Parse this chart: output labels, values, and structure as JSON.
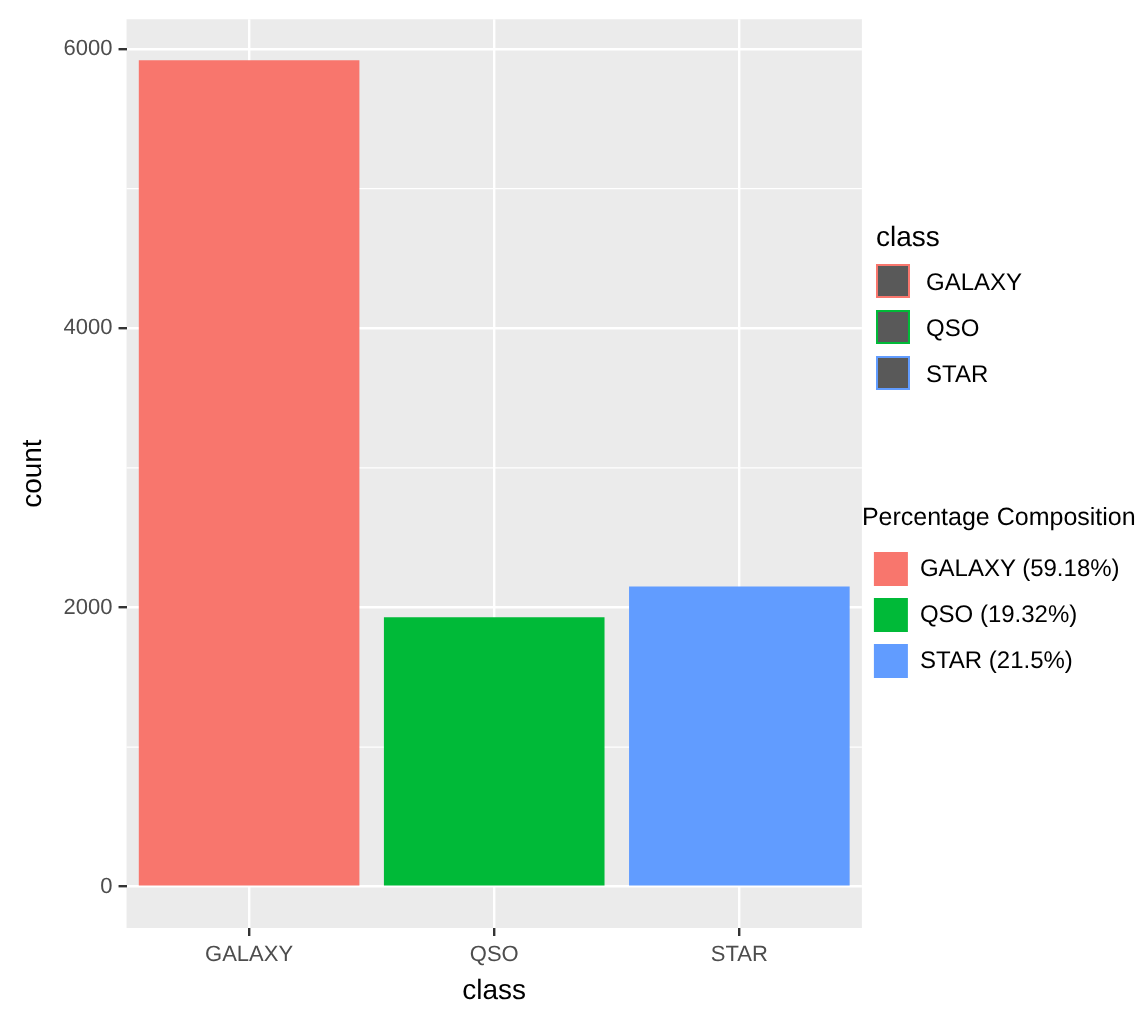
{
  "chart_data": {
    "type": "bar",
    "stacked": true,
    "categories": [
      "GALAXY",
      "QSO",
      "STAR"
    ],
    "series": [
      {
        "name": "GALAXY (59.18%)",
        "color": "#f8766d",
        "values": [
          5920,
          null,
          null
        ]
      },
      {
        "name": "QSO (19.32%)",
        "color": "#00ba38",
        "values": [
          null,
          1930,
          null
        ]
      },
      {
        "name": "STAR (21.5%)",
        "color": "#619cff",
        "values": [
          null,
          null,
          2150
        ]
      }
    ],
    "xlabel": "class",
    "ylabel": "count",
    "ylim": [
      -296,
      6214
    ],
    "yticks": [
      0,
      2000,
      4000,
      6000
    ],
    "grid": true,
    "legend": "right",
    "legend_title": "Percentage Composition",
    "annotations": [
      "class",
      "GALAXY",
      "QSO",
      "STAR"
    ]
  }
}
